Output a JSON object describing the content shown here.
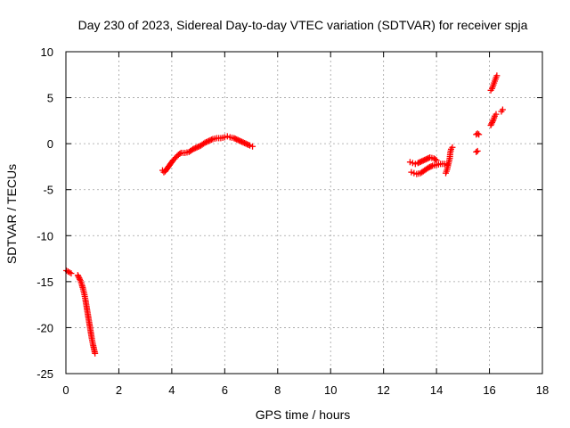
{
  "chart_data": {
    "type": "scatter",
    "title": "Day 230 of 2023, Sidereal Day-to-day VTEC variation (SDTVAR) for receiver spja",
    "xlabel": "GPS time / hours",
    "ylabel": "SDTVAR / TECUs",
    "xlim": [
      0,
      18
    ],
    "ylim": [
      -25,
      10
    ],
    "xticks": [
      0,
      2,
      4,
      6,
      8,
      10,
      12,
      14,
      16,
      18
    ],
    "yticks": [
      -25,
      -20,
      -15,
      -10,
      -5,
      0,
      5,
      10
    ],
    "grid": true,
    "marker": "+",
    "color": "#ff0000",
    "series": [
      {
        "name": "SDTVAR",
        "segments": [
          [
            [
              0.02,
              -13.8
            ],
            [
              0.08,
              -13.9
            ],
            [
              0.14,
              -14.0
            ],
            [
              0.2,
              -14.1
            ]
          ],
          [
            [
              0.45,
              -14.3
            ],
            [
              0.5,
              -14.6
            ],
            [
              0.55,
              -14.9
            ],
            [
              0.6,
              -15.3
            ],
            [
              0.65,
              -15.8
            ],
            [
              0.7,
              -16.4
            ],
            [
              0.74,
              -17.0
            ],
            [
              0.78,
              -17.7
            ],
            [
              0.82,
              -18.4
            ],
            [
              0.86,
              -19.1
            ],
            [
              0.9,
              -19.8
            ],
            [
              0.94,
              -20.5
            ],
            [
              0.98,
              -21.2
            ],
            [
              1.02,
              -21.8
            ],
            [
              1.06,
              -22.3
            ],
            [
              1.1,
              -22.8
            ]
          ],
          [
            [
              3.65,
              -2.9
            ],
            [
              3.7,
              -3.1
            ],
            [
              3.75,
              -3.0
            ],
            [
              3.85,
              -2.6
            ],
            [
              3.95,
              -2.2
            ],
            [
              4.05,
              -1.8
            ],
            [
              4.15,
              -1.5
            ],
            [
              4.25,
              -1.2
            ],
            [
              4.35,
              -1.0
            ],
            [
              4.5,
              -1.0
            ],
            [
              4.65,
              -0.9
            ],
            [
              4.8,
              -0.6
            ],
            [
              4.95,
              -0.4
            ],
            [
              5.1,
              -0.2
            ],
            [
              5.25,
              0.1
            ],
            [
              5.4,
              0.3
            ],
            [
              5.55,
              0.5
            ],
            [
              5.7,
              0.6
            ],
            [
              5.85,
              0.6
            ],
            [
              6.0,
              0.7
            ],
            [
              6.1,
              0.8
            ],
            [
              6.2,
              0.7
            ],
            [
              6.35,
              0.6
            ],
            [
              6.5,
              0.4
            ],
            [
              6.65,
              0.2
            ],
            [
              6.8,
              0.0
            ],
            [
              6.95,
              -0.2
            ],
            [
              7.05,
              -0.3
            ]
          ],
          [
            [
              13.0,
              -2.0
            ],
            [
              13.1,
              -2.1
            ],
            [
              13.2,
              -2.2
            ],
            [
              13.3,
              -2.1
            ],
            [
              13.45,
              -1.9
            ],
            [
              13.6,
              -1.7
            ],
            [
              13.75,
              -1.5
            ],
            [
              13.9,
              -1.6
            ],
            [
              14.0,
              -1.8
            ]
          ],
          [
            [
              13.05,
              -3.1
            ],
            [
              13.15,
              -3.2
            ],
            [
              13.25,
              -3.3
            ],
            [
              13.4,
              -3.2
            ],
            [
              13.55,
              -2.9
            ],
            [
              13.7,
              -2.6
            ],
            [
              13.85,
              -2.4
            ],
            [
              14.0,
              -2.3
            ],
            [
              14.15,
              -2.2
            ],
            [
              14.3,
              -2.2
            ],
            [
              14.4,
              -2.3
            ]
          ],
          [
            [
              14.35,
              -3.2
            ],
            [
              14.4,
              -2.8
            ],
            [
              14.45,
              -2.2
            ],
            [
              14.5,
              -1.6
            ],
            [
              14.52,
              -1.0
            ],
            [
              14.55,
              -0.6
            ],
            [
              14.6,
              -0.4
            ]
          ],
          [
            [
              15.5,
              1.0
            ],
            [
              15.55,
              1.1
            ],
            [
              15.6,
              1.0
            ]
          ],
          [
            [
              15.5,
              -0.9
            ],
            [
              15.55,
              -0.8
            ]
          ],
          [
            [
              16.05,
              2.0
            ],
            [
              16.1,
              2.3
            ],
            [
              16.15,
              2.6
            ],
            [
              16.2,
              3.0
            ],
            [
              16.25,
              3.2
            ]
          ],
          [
            [
              16.05,
              5.8
            ],
            [
              16.1,
              6.0
            ],
            [
              16.15,
              6.4
            ],
            [
              16.2,
              6.8
            ],
            [
              16.25,
              7.2
            ],
            [
              16.28,
              7.4
            ]
          ],
          [
            [
              16.45,
              3.5
            ],
            [
              16.5,
              3.7
            ]
          ]
        ]
      }
    ]
  }
}
